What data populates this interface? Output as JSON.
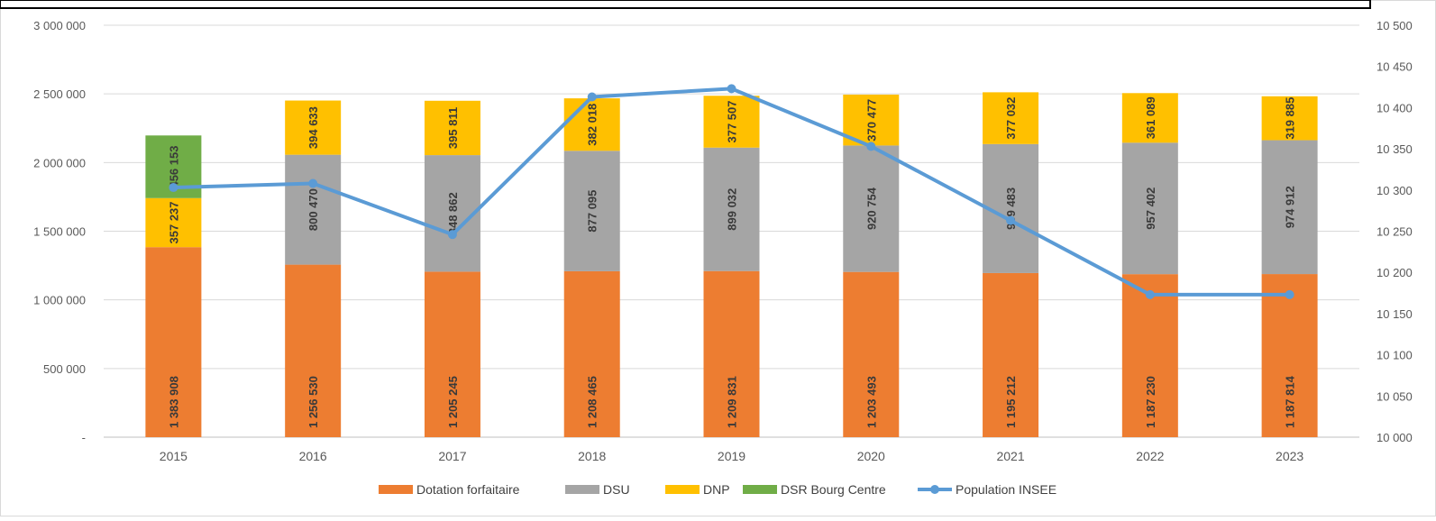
{
  "chart_data": {
    "type": "bar",
    "stacked": true,
    "categories": [
      "2015",
      "2016",
      "2017",
      "2018",
      "2019",
      "2020",
      "2021",
      "2022",
      "2023"
    ],
    "series": [
      {
        "name": "Dotation forfaitaire",
        "color": "#ED7D31",
        "values": [
          1383908,
          1256530,
          1205245,
          1208465,
          1209831,
          1203493,
          1195212,
          1187230,
          1187814
        ],
        "labels": [
          "1 383 908",
          "1 256 530",
          "1 205 245",
          "1 208 465",
          "1 209 831",
          "1 203 493",
          "1 195 212",
          "1 187 230",
          "1 187 814"
        ]
      },
      {
        "name": "DSU",
        "color": "#A5A5A5",
        "values": [
          0,
          800470,
          848862,
          877095,
          899032,
          920754,
          939483,
          957402,
          974912
        ],
        "labels": [
          "",
          "800 470",
          "848 862",
          "877 095",
          "899 032",
          "920 754",
          "939 483",
          "957 402",
          "974 912"
        ]
      },
      {
        "name": "DNP",
        "color": "#FFC000",
        "values": [
          357237,
          394633,
          395811,
          382018,
          377507,
          370477,
          377032,
          361089,
          319885
        ],
        "labels": [
          "357 237",
          "394 633",
          "395 811",
          "382 018",
          "377 507",
          "370 477",
          "377 032",
          "361 089",
          "319 885"
        ]
      },
      {
        "name": "DSR Bourg Centre",
        "color": "#70AD47",
        "values": [
          456153,
          0,
          0,
          0,
          0,
          0,
          0,
          0,
          0
        ],
        "labels": [
          "456 153",
          "",
          "",
          "",
          "",
          "",
          "",
          "",
          ""
        ]
      }
    ],
    "line_series": {
      "name": "Population INSEE",
      "color": "#5B9BD5",
      "axis": "right",
      "values": [
        10303,
        10308,
        10246,
        10413,
        10423,
        10353,
        10263,
        10173,
        10173
      ]
    },
    "y_left": {
      "min": 0,
      "max": 3000000,
      "ticks": [
        0,
        500000,
        1000000,
        1500000,
        2000000,
        2500000,
        3000000
      ],
      "tick_labels": [
        "-",
        "500 000",
        "1 000 000",
        "1 500 000",
        "2 000 000",
        "2 500 000",
        "3 000 000"
      ]
    },
    "y_right": {
      "min": 10000,
      "max": 10500,
      "ticks": [
        10000,
        10050,
        10100,
        10150,
        10200,
        10250,
        10300,
        10350,
        10400,
        10450,
        10500
      ],
      "tick_labels": [
        "10 000",
        "10 050",
        "10 100",
        "10 150",
        "10 200",
        "10 250",
        "10 300",
        "10 350",
        "10 400",
        "10 450",
        "10 500"
      ]
    },
    "grid": true,
    "legend_position": "bottom",
    "legend": [
      "Dotation forfaitaire",
      "DSU",
      "DNP",
      "DSR Bourg Centre",
      "Population INSEE"
    ]
  }
}
